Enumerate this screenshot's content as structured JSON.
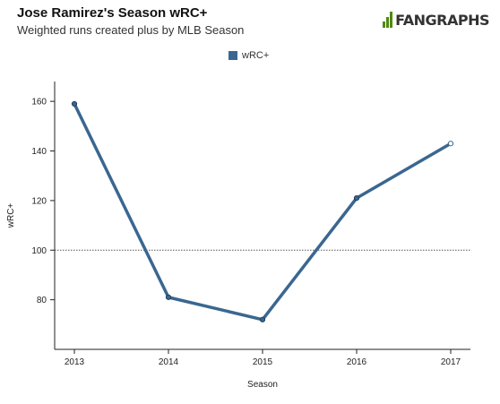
{
  "header": {
    "title": "Jose Ramirez's Season wRC+",
    "subtitle": "Weighted runs created plus by MLB Season",
    "brand": "FANGRAPHS"
  },
  "colors": {
    "series": "#3a6791",
    "brand_green": "#4f8a10",
    "axis": "#222222",
    "reference_line": "#555555"
  },
  "chart_data": {
    "type": "line",
    "x": [
      "2013",
      "2014",
      "2015",
      "2016",
      "2017"
    ],
    "series": [
      {
        "name": "wRC+",
        "values": [
          159,
          81,
          72,
          121,
          143
        ]
      }
    ],
    "xlabel": "Season",
    "ylabel": "wRC+",
    "ylim": [
      60,
      168
    ],
    "yticks": [
      80,
      100,
      120,
      140,
      160
    ],
    "reference_line": 100,
    "legend_position": "top-center",
    "grid": false
  }
}
